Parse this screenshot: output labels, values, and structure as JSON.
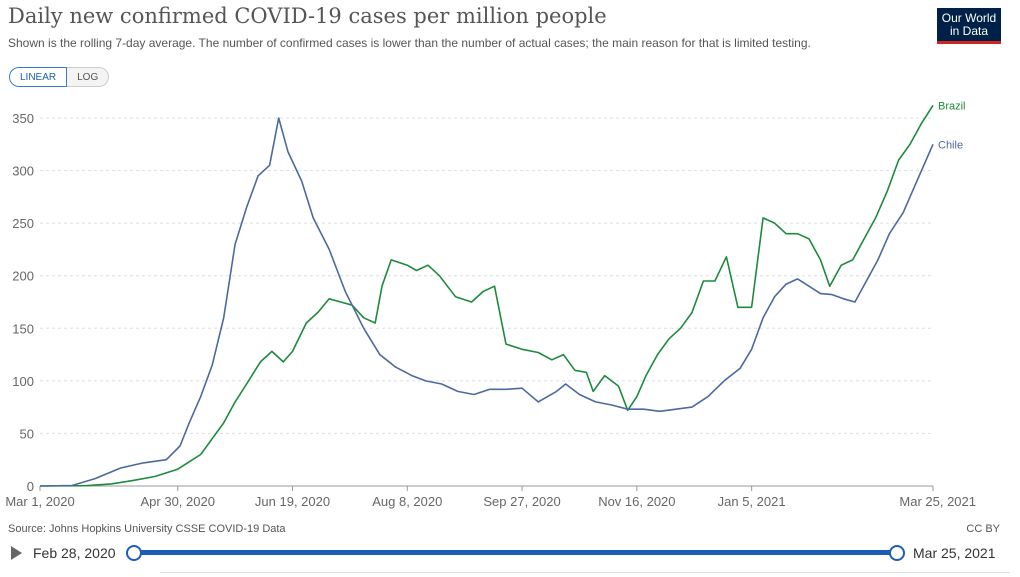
{
  "header": {
    "title": "Daily new confirmed COVID-19 cases per million people",
    "subtitle": "Shown is the rolling 7-day average. The number of confirmed cases is lower than the number of actual cases; the main reason for that is limited testing.",
    "logo_line1": "Our World",
    "logo_line2": "in Data"
  },
  "controls": {
    "linear_label": "LINEAR",
    "log_label": "LOG",
    "selected_scale": "linear"
  },
  "footer": {
    "source": "Source: Johns Hopkins University CSSE COVID-19 Data",
    "license": "CC BY"
  },
  "timeline": {
    "start_label": "Feb 28, 2020",
    "end_label": "Mar 25, 2021"
  },
  "chart_data": {
    "type": "line",
    "title": "Daily new confirmed COVID-19 cases per million people",
    "xlabel": "",
    "ylabel": "",
    "ylim": [
      0,
      370
    ],
    "yticks": [
      0,
      50,
      100,
      150,
      200,
      250,
      300,
      350
    ],
    "ytick_labels": [
      "0",
      "50",
      "100",
      "150",
      "200",
      "250",
      "300",
      "350"
    ],
    "xticks": [
      {
        "date": "2020-03-01",
        "label": "Mar 1, 2020"
      },
      {
        "date": "2020-04-30",
        "label": "Apr 30, 2020"
      },
      {
        "date": "2020-06-19",
        "label": "Jun 19, 2020"
      },
      {
        "date": "2020-08-08",
        "label": "Aug 8, 2020"
      },
      {
        "date": "2020-09-27",
        "label": "Sep 27, 2020"
      },
      {
        "date": "2020-11-16",
        "label": "Nov 16, 2020"
      },
      {
        "date": "2021-01-05",
        "label": "Jan 5, 2021"
      },
      {
        "date": "2021-03-25",
        "label": "Mar 25, 2021"
      }
    ],
    "x_range": [
      "2020-03-01",
      "2021-03-25"
    ],
    "grid": "horizontal dashed",
    "legend": "line-end labels",
    "series": [
      {
        "name": "Brazil",
        "color": "#1e8a3c",
        "points": [
          [
            "2020-03-01",
            0
          ],
          [
            "2020-03-21",
            0.3
          ],
          [
            "2020-04-01",
            2
          ],
          [
            "2020-04-10",
            5
          ],
          [
            "2020-04-20",
            9
          ],
          [
            "2020-04-30",
            16
          ],
          [
            "2020-05-05",
            23
          ],
          [
            "2020-05-10",
            30
          ],
          [
            "2020-05-15",
            45
          ],
          [
            "2020-05-20",
            60
          ],
          [
            "2020-05-25",
            80
          ],
          [
            "2020-05-30",
            97
          ],
          [
            "2020-06-05",
            118
          ],
          [
            "2020-06-10",
            128
          ],
          [
            "2020-06-15",
            118
          ],
          [
            "2020-06-19",
            128
          ],
          [
            "2020-06-25",
            155
          ],
          [
            "2020-06-30",
            165
          ],
          [
            "2020-07-05",
            178
          ],
          [
            "2020-07-10",
            175
          ],
          [
            "2020-07-15",
            172
          ],
          [
            "2020-07-20",
            160
          ],
          [
            "2020-07-25",
            155
          ],
          [
            "2020-07-28",
            190
          ],
          [
            "2020-08-01",
            215
          ],
          [
            "2020-08-08",
            210
          ],
          [
            "2020-08-12",
            205
          ],
          [
            "2020-08-17",
            210
          ],
          [
            "2020-08-22",
            200
          ],
          [
            "2020-08-29",
            180
          ],
          [
            "2020-09-05",
            175
          ],
          [
            "2020-09-10",
            185
          ],
          [
            "2020-09-15",
            190
          ],
          [
            "2020-09-20",
            135
          ],
          [
            "2020-09-27",
            130
          ],
          [
            "2020-10-04",
            127
          ],
          [
            "2020-10-10",
            120
          ],
          [
            "2020-10-15",
            125
          ],
          [
            "2020-10-20",
            110
          ],
          [
            "2020-10-25",
            108
          ],
          [
            "2020-10-28",
            90
          ],
          [
            "2020-11-02",
            105
          ],
          [
            "2020-11-08",
            95
          ],
          [
            "2020-11-12",
            72
          ],
          [
            "2020-11-16",
            85
          ],
          [
            "2020-11-20",
            105
          ],
          [
            "2020-11-25",
            125
          ],
          [
            "2020-11-30",
            140
          ],
          [
            "2020-12-05",
            150
          ],
          [
            "2020-12-10",
            165
          ],
          [
            "2020-12-15",
            195
          ],
          [
            "2020-12-20",
            195
          ],
          [
            "2020-12-25",
            218
          ],
          [
            "2020-12-30",
            170
          ],
          [
            "2021-01-05",
            170
          ],
          [
            "2021-01-10",
            255
          ],
          [
            "2021-01-15",
            250
          ],
          [
            "2021-01-20",
            240
          ],
          [
            "2021-01-25",
            240
          ],
          [
            "2021-01-30",
            235
          ],
          [
            "2021-02-04",
            215
          ],
          [
            "2021-02-08",
            190
          ],
          [
            "2021-02-13",
            210
          ],
          [
            "2021-02-18",
            215
          ],
          [
            "2021-02-23",
            235
          ],
          [
            "2021-02-28",
            255
          ],
          [
            "2021-03-05",
            280
          ],
          [
            "2021-03-10",
            310
          ],
          [
            "2021-03-15",
            325
          ],
          [
            "2021-03-20",
            345
          ],
          [
            "2021-03-25",
            362
          ]
        ]
      },
      {
        "name": "Chile",
        "color": "#4c6a9c",
        "points": [
          [
            "2020-03-01",
            0
          ],
          [
            "2020-03-15",
            0.5
          ],
          [
            "2020-03-25",
            7
          ],
          [
            "2020-04-05",
            17
          ],
          [
            "2020-04-15",
            22
          ],
          [
            "2020-04-25",
            25
          ],
          [
            "2020-05-01",
            38
          ],
          [
            "2020-05-05",
            60
          ],
          [
            "2020-05-10",
            85
          ],
          [
            "2020-05-15",
            115
          ],
          [
            "2020-05-20",
            160
          ],
          [
            "2020-05-25",
            230
          ],
          [
            "2020-05-30",
            265
          ],
          [
            "2020-06-04",
            295
          ],
          [
            "2020-06-09",
            305
          ],
          [
            "2020-06-13",
            350
          ],
          [
            "2020-06-17",
            318
          ],
          [
            "2020-06-23",
            290
          ],
          [
            "2020-06-28",
            255
          ],
          [
            "2020-07-05",
            225
          ],
          [
            "2020-07-12",
            185
          ],
          [
            "2020-07-20",
            150
          ],
          [
            "2020-07-27",
            125
          ],
          [
            "2020-08-03",
            113
          ],
          [
            "2020-08-10",
            105
          ],
          [
            "2020-08-16",
            100
          ],
          [
            "2020-08-23",
            97
          ],
          [
            "2020-08-30",
            90
          ],
          [
            "2020-09-06",
            87
          ],
          [
            "2020-09-13",
            92
          ],
          [
            "2020-09-20",
            92
          ],
          [
            "2020-09-27",
            93
          ],
          [
            "2020-10-04",
            80
          ],
          [
            "2020-10-12",
            90
          ],
          [
            "2020-10-16",
            97
          ],
          [
            "2020-10-22",
            87
          ],
          [
            "2020-10-29",
            80
          ],
          [
            "2020-11-05",
            77
          ],
          [
            "2020-11-12",
            73
          ],
          [
            "2020-11-19",
            73
          ],
          [
            "2020-11-26",
            71
          ],
          [
            "2020-12-03",
            73
          ],
          [
            "2020-12-10",
            75
          ],
          [
            "2020-12-17",
            85
          ],
          [
            "2020-12-24",
            100
          ],
          [
            "2020-12-31",
            112
          ],
          [
            "2021-01-05",
            130
          ],
          [
            "2021-01-10",
            160
          ],
          [
            "2021-01-15",
            180
          ],
          [
            "2021-01-20",
            192
          ],
          [
            "2021-01-25",
            197
          ],
          [
            "2021-01-30",
            190
          ],
          [
            "2021-02-04",
            183
          ],
          [
            "2021-02-09",
            182
          ],
          [
            "2021-02-14",
            178
          ],
          [
            "2021-02-19",
            175
          ],
          [
            "2021-02-24",
            195
          ],
          [
            "2021-03-01",
            215
          ],
          [
            "2021-03-06",
            240
          ],
          [
            "2021-03-12",
            260
          ],
          [
            "2021-03-18",
            290
          ],
          [
            "2021-03-25",
            325
          ]
        ]
      }
    ]
  }
}
